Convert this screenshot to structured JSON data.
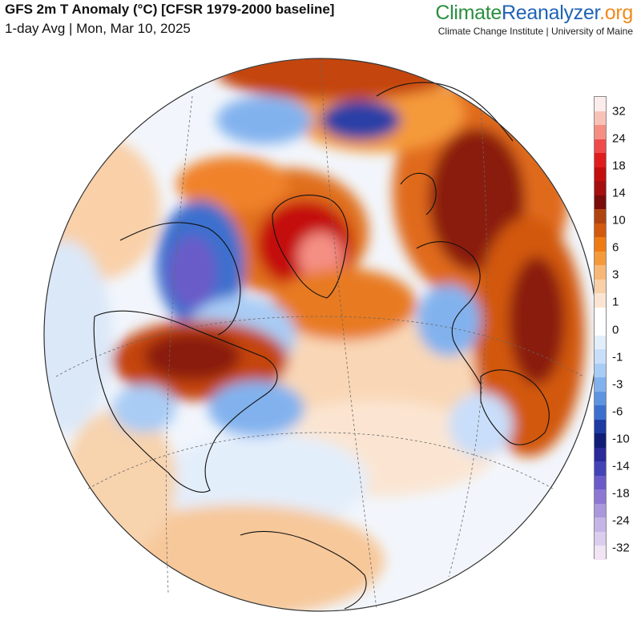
{
  "header": {
    "title": "GFS 2m T Anomaly (°C) [CFSR 1979-2000 baseline]",
    "subtitle": "1-day Avg | Mon, Mar 10, 2025"
  },
  "brand": {
    "name_part1": "Climate",
    "name_part2": "Reanalyzer",
    "name_part3": ".org",
    "subtitle": "Climate Change Institute | University of Maine"
  },
  "legend": {
    "labels": [
      "32",
      "24",
      "18",
      "14",
      "10",
      "6",
      "3",
      "1",
      "0",
      "-1",
      "-3",
      "-6",
      "-10",
      "-14",
      "-18",
      "-24",
      "-32"
    ],
    "colors": [
      "#fdecec",
      "#f9c2b6",
      "#f58f84",
      "#ef4b4b",
      "#e01d1d",
      "#c40f0f",
      "#a50f0f",
      "#7a0c0c",
      "#b04410",
      "#d2590e",
      "#ef7b14",
      "#f59a3a",
      "#f7b777",
      "#f9d0a8",
      "#fbe5d2",
      "#ffffff",
      "#ffffff",
      "#e3eefb",
      "#c9defa",
      "#a9ccf5",
      "#82b2ee",
      "#5e93e2",
      "#3d6fce",
      "#1d3ba2",
      "#101e78",
      "#2a2a9a",
      "#4343b8",
      "#6a5bc8",
      "#8c78d3",
      "#aa98dd",
      "#c4b5e6",
      "#dbcdee",
      "#f0e4f5"
    ]
  },
  "map": {
    "projection": "orthographic",
    "center": "North Atlantic / Arctic",
    "colors": {
      "warm_strong": "#c40f0f",
      "warm_deep": "#8a1a0a",
      "warm_mid": "#d2590e",
      "warm_light": "#f7b777",
      "neutral": "#ffffff",
      "cool_light": "#c9defa",
      "cool_mid": "#5e93e2",
      "cool_deep": "#1d3ba2",
      "cool_violet": "#6a5bc8"
    }
  }
}
